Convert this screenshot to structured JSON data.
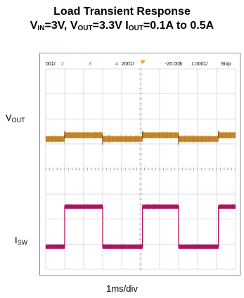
{
  "chart_data": {
    "type": "line",
    "title_line1": "Load Transient Response",
    "title_line2": {
      "vin_main": "V",
      "vin_sub": "IN",
      "vin_value": "=3V, ",
      "vout_main": "V",
      "vout_sub": "OUT",
      "vout_value": "=3.3V ",
      "iout_main": "I",
      "iout_sub": "OUT",
      "iout_value": "=0.1A to 0.5A"
    },
    "xlabel": "1ms/div",
    "scope_header": {
      "ch1_scale": "00‡/",
      "ch2": "2",
      "ch3": "3",
      "ch4": "4",
      "ch4_scale": "200‡/",
      "time_offset": "-20.00$",
      "time_scale": "1.000‡/",
      "run_state": "Stop"
    },
    "grid": true,
    "divisions_x": 10,
    "divisions_y": 8,
    "series": [
      {
        "name": "VOUT",
        "label_main": "V",
        "label_sub": "OUT",
        "color": "#c57e10",
        "baseline_div": 2.8,
        "step_div": 0.15,
        "x_transitions_div": [
          1.0,
          3.0,
          5.1,
          7.0,
          9.1
        ],
        "levels": [
          "low",
          "high",
          "low",
          "high",
          "low",
          "high"
        ]
      },
      {
        "name": "ISW",
        "label_main": "I",
        "label_sub": "SW",
        "color": "#b0005a",
        "high_div": 5.5,
        "low_div": 7.1,
        "x_transitions_div": [
          1.0,
          3.0,
          5.1,
          7.0,
          9.1
        ],
        "levels": [
          "low",
          "high",
          "low",
          "high",
          "low",
          "high"
        ]
      }
    ],
    "colors": {
      "ch1": "#c8a800",
      "ch2": "#22aa22",
      "ch3": "#5566ee",
      "ch4": "#cc3399",
      "grid": "#d4d4d4",
      "grid_dots": "#9a9a9a",
      "trigger_marker": "#f0a000"
    }
  }
}
